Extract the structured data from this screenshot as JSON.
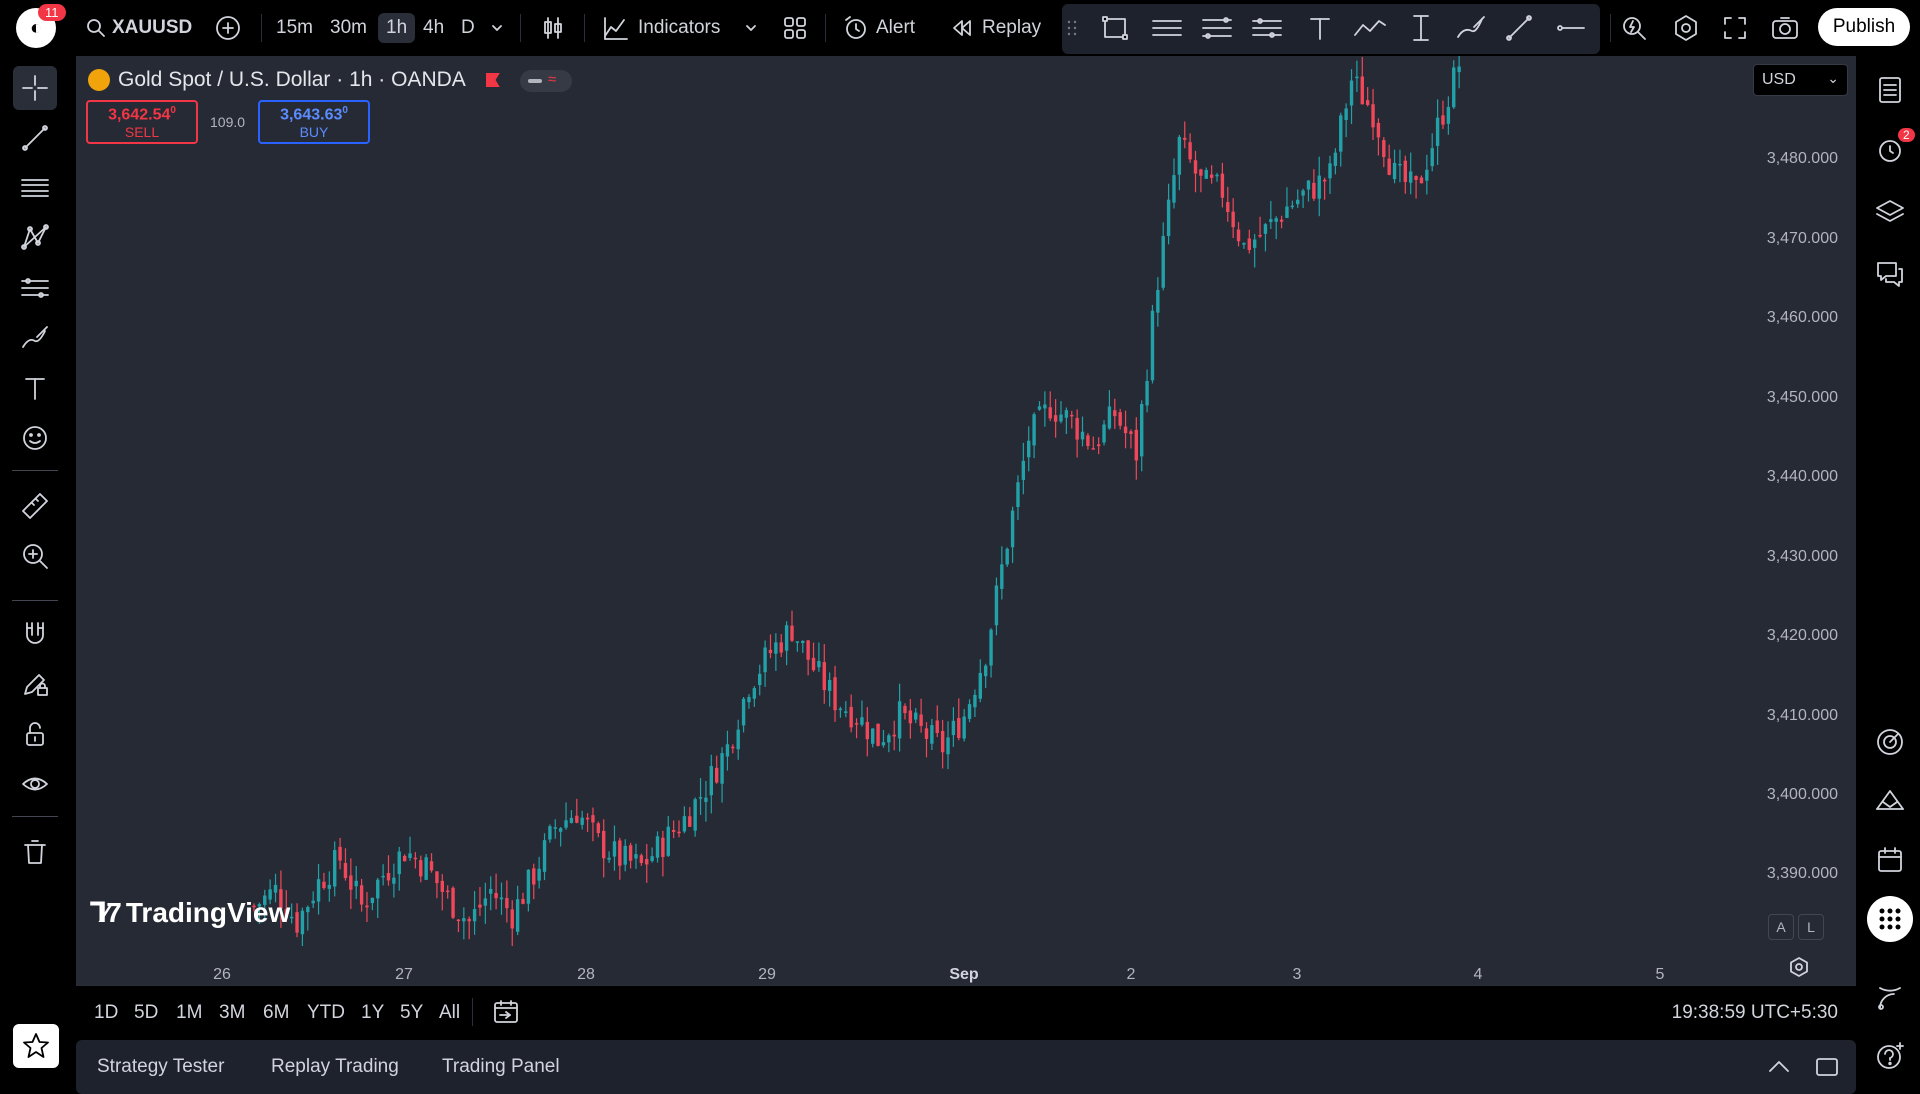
{
  "app": {
    "notification_count": "11",
    "symbol": "XAUUSD",
    "timeframes": [
      "15m",
      "30m",
      "1h",
      "4h",
      "D"
    ],
    "active_timeframe": "1h",
    "indicators_label": "Indicators",
    "alert_label": "Alert",
    "replay_label": "Replay",
    "publish_label": "Publish"
  },
  "chart": {
    "title": "Gold Spot / U.S. Dollar · 1h · OANDA",
    "sell": {
      "price_main": "3,642.54",
      "price_sup": "0",
      "label": "SELL"
    },
    "buy": {
      "price_main": "3,643.63",
      "price_sup": "0",
      "label": "BUY"
    },
    "spread": "109.0",
    "currency": "USD",
    "price_axis": [
      "3,480.000",
      "3,470.000",
      "3,460.000",
      "3,450.000",
      "3,440.000",
      "3,430.000",
      "3,420.000",
      "3,410.000",
      "3,400.000",
      "3,390.000"
    ],
    "date_axis": [
      "26",
      "27",
      "28",
      "29",
      "Sep",
      "2",
      "3",
      "4",
      "5"
    ],
    "watermark": "TradingView",
    "auto_label": "A",
    "log_label": "L",
    "colors": {
      "up": "#22a1a9",
      "down": "#f0485a",
      "background": "#262a34"
    }
  },
  "chart_data": {
    "type": "candlestick",
    "title": "Gold Spot / U.S. Dollar · 1h · OANDA",
    "xlabel": "",
    "ylabel": "",
    "ylim": [
      3381,
      3493
    ],
    "x_ticks": [
      "26",
      "27",
      "28",
      "29",
      "Sep",
      "2",
      "3",
      "4",
      "5"
    ],
    "y_ticks": [
      3390,
      3400,
      3410,
      3420,
      3430,
      3440,
      3450,
      3460,
      3470,
      3480
    ],
    "close_path": [
      [
        0,
        3386
      ],
      [
        4,
        3388
      ],
      [
        8,
        3384
      ],
      [
        12,
        3389
      ],
      [
        16,
        3392
      ],
      [
        20,
        3386
      ],
      [
        24,
        3390
      ],
      [
        28,
        3393
      ],
      [
        32,
        3391
      ],
      [
        36,
        3387
      ],
      [
        40,
        3384
      ],
      [
        44,
        3388
      ],
      [
        48,
        3385
      ],
      [
        52,
        3390
      ],
      [
        56,
        3396
      ],
      [
        60,
        3398
      ],
      [
        64,
        3394
      ],
      [
        68,
        3392
      ],
      [
        72,
        3391
      ],
      [
        76,
        3394
      ],
      [
        80,
        3397
      ],
      [
        84,
        3401
      ],
      [
        88,
        3406
      ],
      [
        92,
        3414
      ],
      [
        96,
        3418
      ],
      [
        100,
        3421
      ],
      [
        104,
        3416
      ],
      [
        108,
        3412
      ],
      [
        112,
        3410
      ],
      [
        116,
        3407
      ],
      [
        120,
        3410
      ],
      [
        124,
        3408
      ],
      [
        128,
        3406
      ],
      [
        132,
        3410
      ],
      [
        136,
        3418
      ],
      [
        140,
        3432
      ],
      [
        144,
        3445
      ],
      [
        148,
        3449
      ],
      [
        152,
        3447
      ],
      [
        156,
        3444
      ],
      [
        160,
        3448
      ],
      [
        164,
        3443
      ],
      [
        168,
        3465
      ],
      [
        172,
        3482
      ],
      [
        176,
        3477
      ],
      [
        180,
        3476
      ],
      [
        184,
        3469
      ],
      [
        188,
        3471
      ],
      [
        192,
        3474
      ],
      [
        196,
        3476
      ],
      [
        200,
        3478
      ],
      [
        204,
        3490
      ],
      [
        208,
        3486
      ],
      [
        212,
        3478
      ],
      [
        216,
        3476
      ],
      [
        220,
        3484
      ],
      [
        224,
        3492
      ]
    ]
  },
  "range_bar": {
    "ranges": [
      "1D",
      "5D",
      "1M",
      "3M",
      "6M",
      "YTD",
      "1Y",
      "5Y",
      "All"
    ],
    "clock": "19:38:59 UTC+5:30"
  },
  "bottom_panel": {
    "tabs": [
      "Strategy Tester",
      "Replay Trading",
      "Trading Panel"
    ]
  },
  "right_sidebar": {
    "alert_badge": "2"
  }
}
